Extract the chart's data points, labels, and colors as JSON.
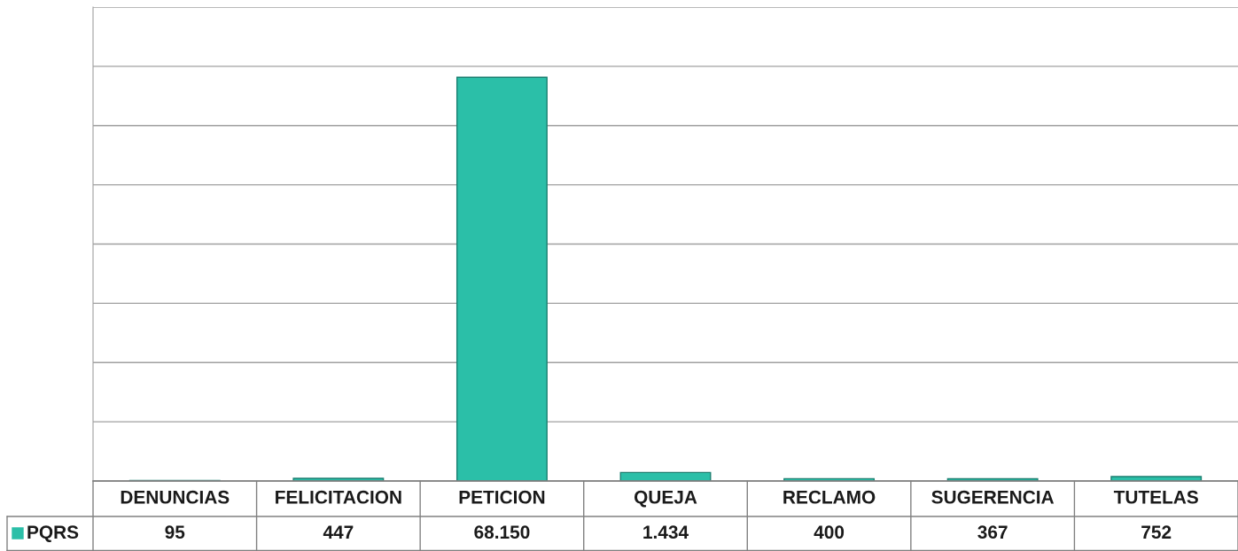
{
  "chart_data": {
    "type": "bar",
    "categories": [
      "DENUNCIAS",
      "FELICITACION",
      "PETICION",
      "QUEJA",
      "RECLAMO",
      "SUGERENCIA",
      "TUTELAS"
    ],
    "series": [
      {
        "name": "PQRS",
        "color": "#2bbfa8",
        "values": [
          95,
          447,
          68150,
          1434,
          400,
          367,
          752
        ],
        "value_labels": [
          "95",
          "447",
          "68.150",
          "1.434",
          "400",
          "367",
          "752"
        ]
      }
    ],
    "ylim": [
      0,
      80000
    ],
    "yticks": [
      {
        "value": 0,
        "label": null
      },
      {
        "value": 10000,
        "label": null
      },
      {
        "value": 20000,
        "label": null
      },
      {
        "value": 30000,
        "label": null
      },
      {
        "value": 40000,
        "label": null
      },
      {
        "value": 50000,
        "label": null
      },
      {
        "value": 60000,
        "label": null
      },
      {
        "value": 70000,
        "label": null
      },
      {
        "value": 80000,
        "label": null
      }
    ],
    "grid": "y",
    "tick_labels": "x"
  }
}
